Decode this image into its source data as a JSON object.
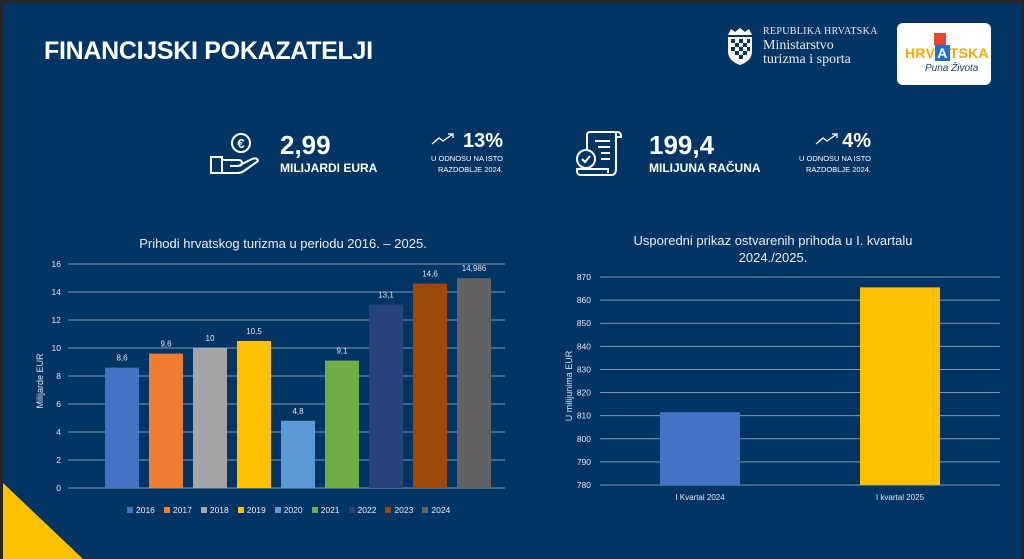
{
  "header": {
    "title": "FINANCIJSKI POKAZATELJI",
    "ministry_line1": "REPUBLIKA HRVATSKA",
    "ministry_line2": "Ministarstvo",
    "ministry_line3": "turizma i sporta",
    "logo_word_1": "HRV",
    "logo_word_a": "A",
    "logo_word_2": "TSKA",
    "logo_tagline": "Puna Života"
  },
  "kpis": [
    {
      "icon": "euro-hand-icon",
      "value": "2,99",
      "unit": "MILIJARDI EURA",
      "change": "13%",
      "change_note_1": "U ODNOSU NA ISTO",
      "change_note_2": "RAZDOBLJE 2024."
    },
    {
      "icon": "receipt-check-icon",
      "value": "199,4",
      "unit": "MILIJUNA RAČUNA",
      "change": "4%",
      "change_note_1": "U ODNOSU NA ISTO",
      "change_note_2": "RAZDOBLJE 2024."
    }
  ],
  "colors": {
    "background": "#023563",
    "accent": "#ffc000",
    "grid": "#7f97b0"
  },
  "chart_data": [
    {
      "type": "bar",
      "title": "Prihodi hrvatskog turizma u periodu 2016. – 2025.",
      "xlabel": "",
      "ylabel": "Milijarde EUR",
      "ylim": [
        0,
        16
      ],
      "yticks": [
        "0",
        "2",
        "4",
        "6",
        "8",
        "10",
        "12",
        "14",
        "16"
      ],
      "grid": true,
      "legend_position": "bottom",
      "categories": [
        "2016",
        "2017",
        "2018",
        "2019",
        "2020",
        "2021",
        "2022",
        "2023",
        "2024"
      ],
      "values": [
        8.6,
        9.6,
        10,
        10.5,
        4.8,
        9.1,
        13.1,
        14.6,
        14.986
      ],
      "labels": [
        "8,6",
        "9,6",
        "10",
        "10,5",
        "4,8",
        "9,1",
        "13,1",
        "14,6",
        "14,986"
      ],
      "colors": [
        "#4472c4",
        "#ed7d31",
        "#a5a5a5",
        "#ffc000",
        "#5b9bd5",
        "#70ad47",
        "#264478",
        "#9e480e",
        "#636363"
      ]
    },
    {
      "type": "bar",
      "title_line1": "Usporedni prikaz ostvarenih prihoda u I. kvartalu",
      "title_line2": "2024./2025.",
      "xlabel": "",
      "ylabel": "U milijunima EUR",
      "ylim": [
        780,
        870
      ],
      "yticks": [
        "780",
        "790",
        "800",
        "810",
        "820",
        "830",
        "840",
        "850",
        "860",
        "870"
      ],
      "grid": true,
      "categories": [
        "I Kvartal 2024",
        "I kvartal 2025"
      ],
      "values": [
        811.5,
        865.5
      ],
      "colors": [
        "#4472c4",
        "#ffc000"
      ]
    }
  ]
}
